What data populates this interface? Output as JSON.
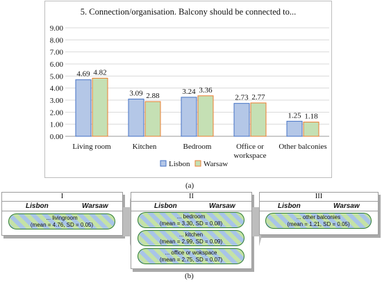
{
  "chart_data": {
    "type": "bar",
    "title": "5. Connection/organisation. Balcony should be connected to...",
    "categories": [
      "Living room",
      "Kitchen",
      "Bedroom",
      "Office or workspace",
      "Other balconies"
    ],
    "category_lines": [
      [
        "Living room"
      ],
      [
        "Kitchen"
      ],
      [
        "Bedroom"
      ],
      [
        "Office or",
        "workspace"
      ],
      [
        "Other balconies"
      ]
    ],
    "series": [
      {
        "name": "Lisbon",
        "values": [
          4.69,
          3.09,
          3.24,
          2.73,
          1.25
        ],
        "color": "#b4c7e7",
        "stroke": "#4472c4"
      },
      {
        "name": "Warsaw",
        "values": [
          4.82,
          2.88,
          3.36,
          2.77,
          1.18
        ],
        "color": "#c5e0b4",
        "stroke": "#ed7d31"
      }
    ],
    "data_labels": [
      [
        "4.69",
        "3.09",
        "3.24",
        "2.73",
        "1.25"
      ],
      [
        "4.82",
        "2.88",
        "3.36",
        "2.77",
        "1.18"
      ]
    ],
    "yticks": [
      "0.00",
      "1.00",
      "2.00",
      "3.00",
      "4.00",
      "5.00",
      "6.00",
      "7.00",
      "8.00",
      "9.00"
    ],
    "ylim": [
      0,
      9
    ],
    "grid": true,
    "legend": "bottom"
  },
  "captions": {
    "a": "(a)",
    "b": "(b)"
  },
  "diagram": {
    "stages": [
      {
        "number": "I",
        "city_left": "Lisbon",
        "city_right": "Warsaw",
        "items": [
          {
            "name": "... livingroom",
            "stats": "(mean = 4.76, SD = 0.05)"
          }
        ]
      },
      {
        "number": "II",
        "city_left": "Lisbon",
        "city_right": "Warsaw",
        "items": [
          {
            "name": "... bedroom",
            "stats": "(mean = 3.30, SD = 0.08)"
          },
          {
            "name": "... kitchen",
            "stats": "(mean = 2.99, SD = 0.09)"
          },
          {
            "name": "... office or wokspace",
            "stats": "(mean = 2.75, SD = 0.07)"
          }
        ]
      },
      {
        "number": "III",
        "city_left": "Lisbon",
        "city_right": "Warsaw",
        "items": [
          {
            "name": "... other balconies",
            "stats": "(mean = 1.21, SD = 0.05)"
          }
        ]
      }
    ]
  }
}
